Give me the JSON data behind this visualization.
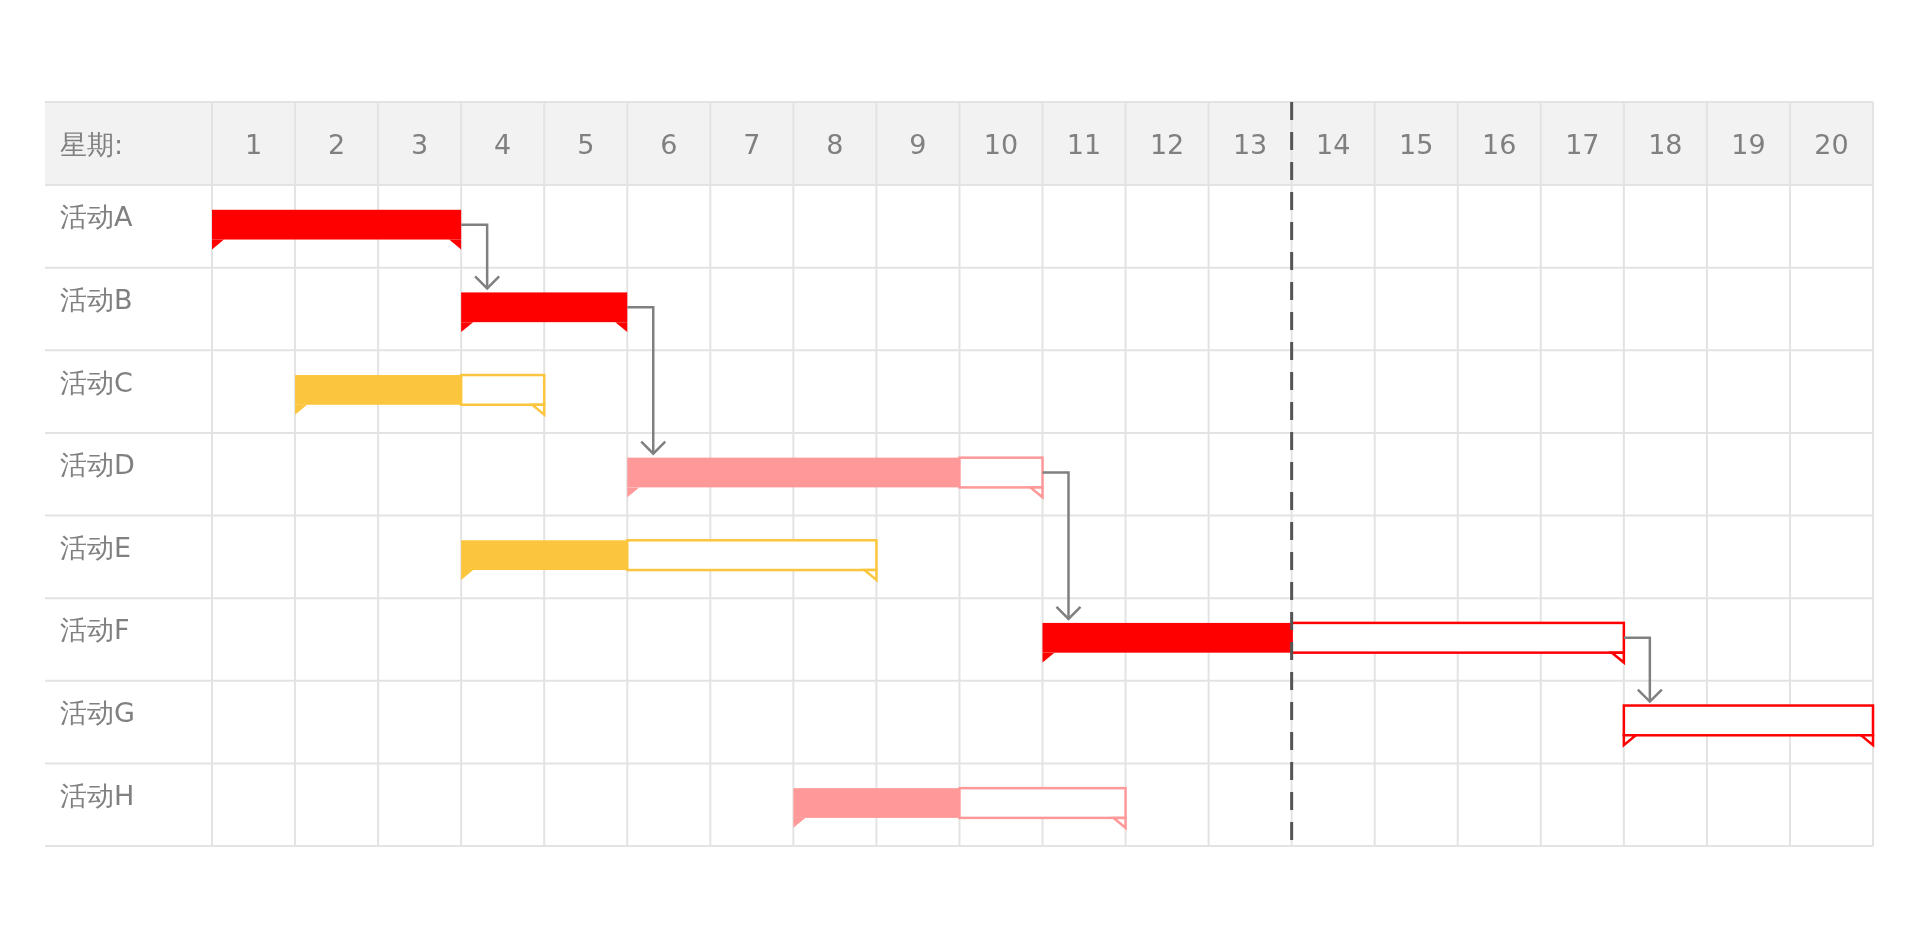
{
  "chart_data": {
    "type": "bar",
    "orientation": "horizontal",
    "xlabel": "星期:",
    "categories": [
      "活动A",
      "活动B",
      "活动C",
      "活动D",
      "活动E",
      "活动F",
      "活动G",
      "活动H"
    ],
    "series": [
      {
        "base": [
          0.5,
          3.5,
          1.5,
          5.5,
          3.5,
          10.5,
          null,
          7.5
        ],
        "values": [
          3,
          2,
          2,
          4,
          2,
          3,
          null,
          2
        ],
        "colors": [
          "#ff0000",
          "#ff0000",
          "#fbc63d",
          "#ff9999",
          "#fbc63d",
          "#ff0000",
          null,
          "#ff9999"
        ]
      },
      {
        "base": [
          null,
          null,
          3.5,
          9.5,
          5.5,
          13.5,
          17.5,
          9.5
        ],
        "values": [
          null,
          null,
          1,
          1,
          3,
          4,
          3,
          2
        ],
        "colors": [
          null,
          null,
          "#fbc63d",
          "#ff9999",
          "#fbc63d",
          "#ff0000",
          "#ff0000",
          "#ff9999"
        ]
      }
    ],
    "xlim": [
      0.5,
      20.5
    ],
    "xticks": [
      1,
      2,
      3,
      4,
      5,
      6,
      7,
      8,
      9,
      10,
      11,
      12,
      13,
      14,
      15,
      16,
      17,
      18,
      19,
      20
    ],
    "grid": true,
    "ref_lines": [
      {
        "axis": "x",
        "value": 13.5,
        "color": "#555555",
        "line_style": "dashed"
      }
    ]
  }
}
